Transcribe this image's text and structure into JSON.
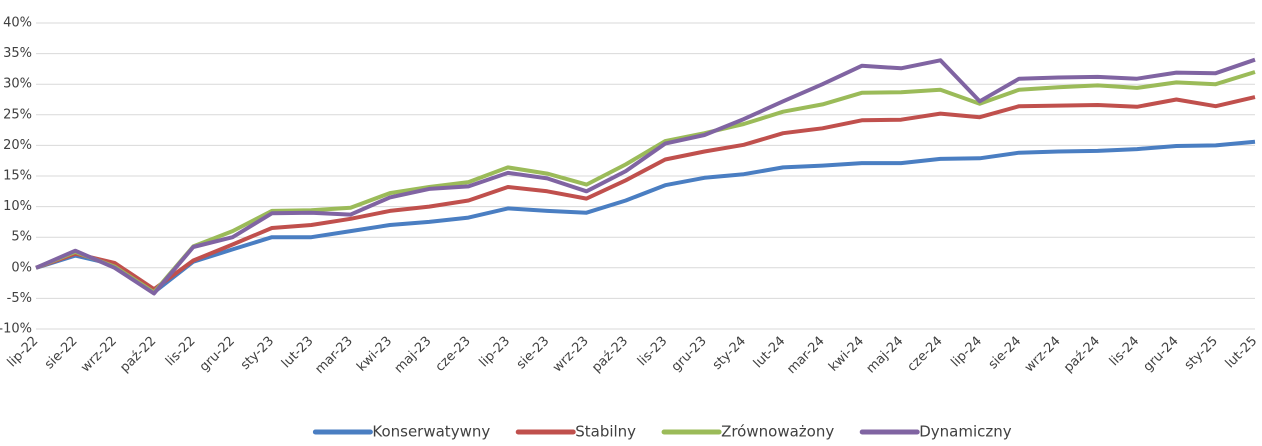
{
  "chart_data": {
    "type": "line",
    "categories": [
      "lip-22",
      "sie-22",
      "wrz-22",
      "paź-22",
      "lis-22",
      "gru-22",
      "sty-23",
      "lut-23",
      "mar-23",
      "kwi-23",
      "maj-23",
      "cze-23",
      "lip-23",
      "sie-23",
      "wrz-23",
      "paź-23",
      "lis-23",
      "gru-23",
      "sty-24",
      "lut-24",
      "mar-24",
      "kwi-24",
      "maj-24",
      "cze-24",
      "lip-24",
      "sie-24",
      "wrz-24",
      "paź-24",
      "lis-24",
      "gru-24",
      "sty-25",
      "lut-25"
    ],
    "series": [
      {
        "name": "Konserwatywny",
        "color": "#4a7ec2",
        "values": [
          0,
          2,
          0.5,
          -4,
          1,
          3,
          5,
          5,
          6,
          7,
          7.5,
          8.2,
          9.7,
          9.3,
          9,
          11,
          13.5,
          14.7,
          15.3,
          16.4,
          16.7,
          17.1,
          17.1,
          17.8,
          17.9,
          18.8,
          19,
          19.1,
          19.4,
          19.9,
          20,
          20.6
        ]
      },
      {
        "name": "Stabilny",
        "color": "#c0504d",
        "values": [
          0,
          2.3,
          0.8,
          -3.5,
          1.2,
          3.8,
          6.5,
          7,
          8,
          9.3,
          10,
          11,
          13.2,
          12.5,
          11.3,
          14.3,
          17.7,
          19,
          20.1,
          22,
          22.8,
          24.1,
          24.2,
          25.2,
          24.6,
          26.4,
          26.5,
          26.6,
          26.3,
          27.5,
          26.4,
          27.9
        ]
      },
      {
        "name": "Zrównoważony",
        "color": "#9bbb59",
        "values": [
          0,
          2.6,
          0.2,
          -4,
          3.5,
          6,
          9.3,
          9.4,
          9.8,
          12.2,
          13.2,
          14,
          16.4,
          15.4,
          13.6,
          16.9,
          20.7,
          22,
          23.5,
          25.5,
          26.7,
          28.6,
          28.7,
          29.1,
          26.8,
          29.1,
          29.5,
          29.8,
          29.4,
          30.3,
          30,
          32
        ]
      },
      {
        "name": "Dynamiczny",
        "color": "#8064a2",
        "values": [
          0,
          2.8,
          0,
          -4.2,
          3.4,
          5,
          8.9,
          9,
          8.7,
          11.5,
          12.9,
          13.3,
          15.5,
          14.6,
          12.5,
          15.8,
          20.3,
          21.7,
          24.3,
          27.2,
          30,
          33,
          32.6,
          33.9,
          27.2,
          30.9,
          31.1,
          31.2,
          30.9,
          31.9,
          31.8,
          34
        ]
      }
    ],
    "ylim": [
      -10,
      40
    ],
    "yticks": [
      {
        "value": -10,
        "label": "-10%"
      },
      {
        "value": -5,
        "label": "-5%"
      },
      {
        "value": 0,
        "label": "0%"
      },
      {
        "value": 5,
        "label": "5%"
      },
      {
        "value": 10,
        "label": "10%"
      },
      {
        "value": 15,
        "label": "15%"
      },
      {
        "value": 20,
        "label": "20%"
      },
      {
        "value": 25,
        "label": "25%"
      },
      {
        "value": 30,
        "label": "30%"
      },
      {
        "value": 35,
        "label": "35%"
      },
      {
        "value": 40,
        "label": "40%"
      }
    ],
    "grid": true,
    "legend": "bottom"
  }
}
